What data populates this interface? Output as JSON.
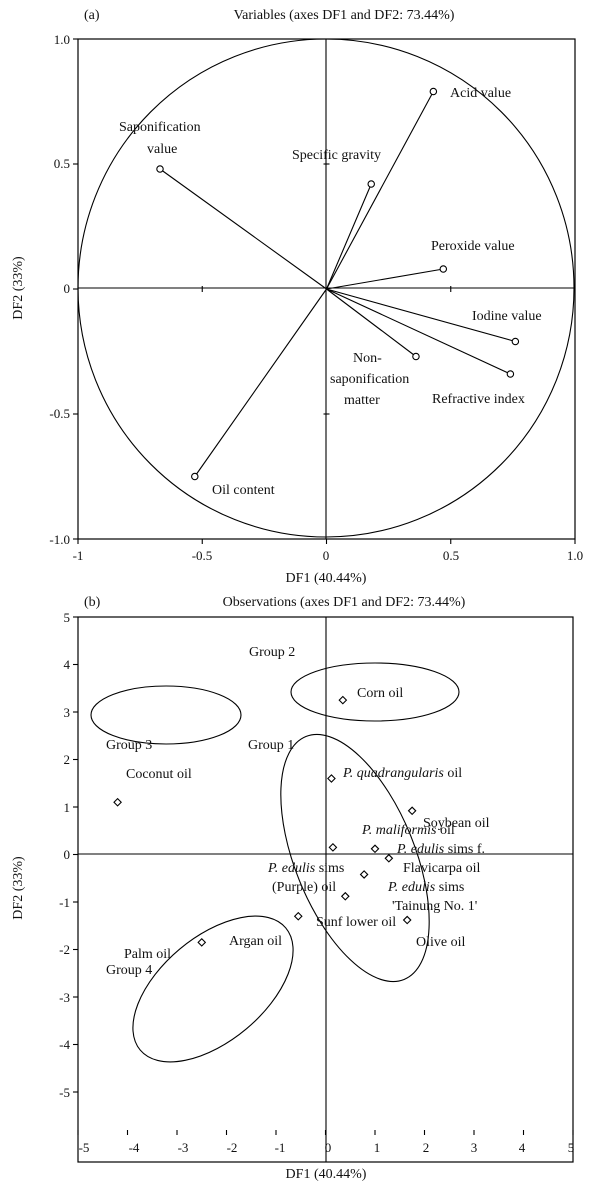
{
  "chart_data": [
    {
      "type": "scatter",
      "panel": "(a)",
      "title": "Variables (axes DF1 and DF2: 73.44%)",
      "xlabel": "DF1 (40.44%)",
      "ylabel": "DF2 (33%)",
      "xlim": [
        -1,
        1
      ],
      "ylim": [
        -1,
        1
      ],
      "x_ticks": [
        "-1",
        "-0.5",
        "0",
        "0.5",
        "1.0"
      ],
      "y_ticks": [
        "1.0",
        "0.5",
        "0",
        "-0.5",
        "-1.0"
      ],
      "correlation_circle": true,
      "points": [
        {
          "label": "Acid value",
          "x": 0.43,
          "y": 0.79
        },
        {
          "label": "Saponification value",
          "x": -0.67,
          "y": 0.48
        },
        {
          "label": "Specific gravity",
          "x": 0.18,
          "y": 0.42
        },
        {
          "label": "Peroxide value",
          "x": 0.47,
          "y": 0.08
        },
        {
          "label": "Iodine value",
          "x": 0.76,
          "y": -0.21
        },
        {
          "label": "Non-saponification matter",
          "x": 0.36,
          "y": -0.27
        },
        {
          "label": "Refractive index",
          "x": 0.74,
          "y": -0.34
        },
        {
          "label": "Oil content",
          "x": -0.53,
          "y": -0.75
        }
      ]
    },
    {
      "type": "scatter",
      "panel": "(b)",
      "title": "Observations (axes DF1 and DF2: 73.44%)",
      "xlabel": "DF1 (40.44%)",
      "ylabel": "DF2 (33%)",
      "xlim": [
        -5,
        5
      ],
      "ylim": [
        -5,
        5
      ],
      "x_ticks": [
        "-5",
        "-4",
        "-3",
        "-2",
        "-1",
        "0",
        "1",
        "2",
        "3",
        "4",
        "5"
      ],
      "y_ticks": [
        "5",
        "4",
        "3",
        "2",
        "1",
        "0",
        "-1",
        "-2",
        "-3",
        "-4",
        "-5"
      ],
      "points": [
        {
          "label": "Corn oil",
          "x": 0.35,
          "y": 3.25
        },
        {
          "label": "Coconut oil",
          "x": -4.2,
          "y": 1.1
        },
        {
          "label": "P. quadrangularis oil",
          "x": 0.12,
          "y": 1.6
        },
        {
          "label": "Soybean oil",
          "x": 1.75,
          "y": 0.92
        },
        {
          "label": "P. maliformis oil",
          "x": 0.15,
          "y": 0.15
        },
        {
          "label": "P. edulis sims f. Flavicarpa oil",
          "x": 1.0,
          "y": 0.12
        },
        {
          "label": "P. edulis sims (Purple) oil",
          "x": 0.78,
          "y": -0.42
        },
        {
          "label": "P. edulis sims 'Tainung No. 1'",
          "x": 1.28,
          "y": -0.08
        },
        {
          "label": "Sunf lower oil",
          "x": 0.4,
          "y": -0.88
        },
        {
          "label": "Olive oil",
          "x": 1.65,
          "y": -1.38
        },
        {
          "label": "Argan oil",
          "x": -0.55,
          "y": -1.3
        },
        {
          "label": "Palm oil",
          "x": -2.5,
          "y": -1.85
        }
      ],
      "groups": [
        "Group 1",
        "Group 2",
        "Group 3",
        "Group 4"
      ]
    }
  ]
}
